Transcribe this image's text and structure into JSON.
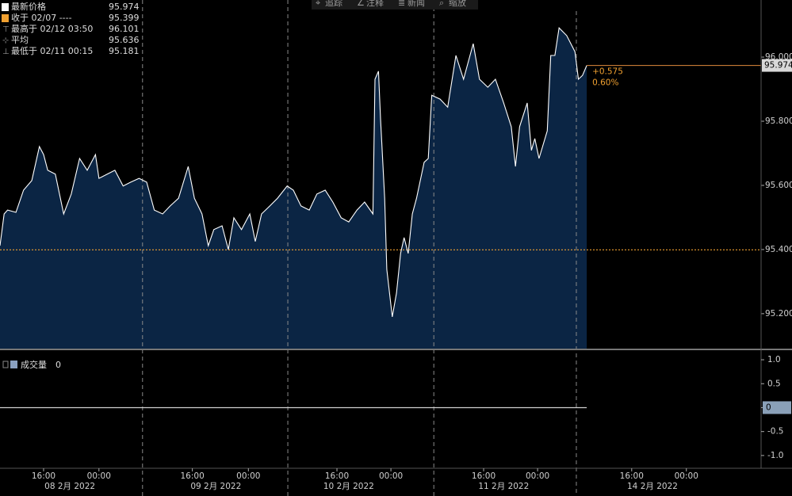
{
  "chart_data": {
    "type": "line",
    "toolbar": [
      "追踪",
      "注释",
      "新闻",
      "缩放"
    ],
    "legend": [
      {
        "label": "最新价格",
        "value": 95.974
      },
      {
        "label": "收于 02/07 ----",
        "value": 95.399
      },
      {
        "label": "最高于 02/12 03:50",
        "value": 96.101
      },
      {
        "label": "平均",
        "value": 95.636
      },
      {
        "label": "最低于 02/11 00:15",
        "value": 95.181
      }
    ],
    "last_price": 95.974,
    "close_price": 95.399,
    "change": "+0.575",
    "change_pct": "0.60%",
    "series": [
      {
        "color": "#ffffff",
        "fill": "#0b2544",
        "x": [
          0,
          0.6,
          1.1,
          2.3,
          3.4,
          4.6,
          5.7,
          6.3,
          6.9,
          8.0,
          9.2,
          10.3,
          11.5,
          12.6,
          13.8,
          14.3,
          15.5,
          16.6,
          17.8,
          18.9,
          20.1,
          21.2,
          22.3,
          23.5,
          24.6,
          25.8,
          27.2,
          28.1,
          29.2,
          30.1,
          30.9,
          32.1,
          33.0,
          33.8,
          34.9,
          36.1,
          36.9,
          37.8,
          39.0,
          40.1,
          41.5,
          42.4,
          43.5,
          44.7,
          45.8,
          47.0,
          48.1,
          49.3,
          50.4,
          51.6,
          52.7,
          53.9,
          54.2,
          54.7,
          55.0,
          55.6,
          55.9,
          56.7,
          57.3,
          57.9,
          58.4,
          59.0,
          59.6,
          60.2,
          61.3,
          61.9,
          62.4,
          63.6,
          64.7,
          65.9,
          67.0,
          68.4,
          69.3,
          70.5,
          71.6,
          72.8,
          73.9,
          74.5,
          75.1,
          76.2,
          76.8,
          77.3,
          77.9,
          79.1,
          79.6,
          80.2,
          80.8,
          81.9,
          83.1,
          83.6,
          84.2,
          84.8
        ],
        "values": [
          95.412,
          95.511,
          95.523,
          95.516,
          95.585,
          95.615,
          95.721,
          95.696,
          95.647,
          95.635,
          95.511,
          95.573,
          95.684,
          95.647,
          95.696,
          95.622,
          95.635,
          95.647,
          95.598,
          95.61,
          95.622,
          95.61,
          95.523,
          95.511,
          95.536,
          95.56,
          95.659,
          95.56,
          95.511,
          95.412,
          95.462,
          95.474,
          95.4,
          95.499,
          95.462,
          95.511,
          95.425,
          95.511,
          95.536,
          95.56,
          95.598,
          95.585,
          95.536,
          95.523,
          95.573,
          95.585,
          95.548,
          95.499,
          95.486,
          95.523,
          95.548,
          95.511,
          95.931,
          95.956,
          95.807,
          95.56,
          95.338,
          95.19,
          95.264,
          95.388,
          95.437,
          95.388,
          95.511,
          95.56,
          95.672,
          95.684,
          95.881,
          95.869,
          95.844,
          96.005,
          95.931,
          96.042,
          95.931,
          95.906,
          95.931,
          95.857,
          95.783,
          95.659,
          95.783,
          95.857,
          95.709,
          95.746,
          95.684,
          95.77,
          96.005,
          96.005,
          96.091,
          96.067,
          96.017,
          95.931,
          95.943,
          95.974
        ]
      }
    ],
    "xlim": [
      0,
      110
    ],
    "ylim": [
      95.091,
      96.178
    ],
    "yticks": [
      {
        "value": 95.2,
        "label": "95.200"
      },
      {
        "value": 95.4,
        "label": "95.400"
      },
      {
        "value": 95.6,
        "label": "95.600"
      },
      {
        "value": 95.8,
        "label": "95.800"
      },
      {
        "value": 96.0,
        "label": "96.000"
      }
    ],
    "xticks": [
      {
        "value": 6.3,
        "label": "16:00"
      },
      {
        "value": 14.3,
        "label": "00:00"
      },
      {
        "value": 27.8,
        "label": "16:00"
      },
      {
        "value": 35.9,
        "label": "00:00"
      },
      {
        "value": 48.7,
        "label": "16:00"
      },
      {
        "value": 56.5,
        "label": "00:00"
      },
      {
        "value": 69.9,
        "label": "16:00"
      },
      {
        "value": 77.7,
        "label": "00:00"
      },
      {
        "value": 91.3,
        "label": "16:00"
      },
      {
        "value": 99.2,
        "label": "00:00"
      }
    ],
    "dates": [
      {
        "value": 10.1,
        "label": "08 2月 2022"
      },
      {
        "value": 31.2,
        "label": "09 2月 2022"
      },
      {
        "value": 50.4,
        "label": "10 2月 2022"
      },
      {
        "value": 72.8,
        "label": "11 2月 2022"
      },
      {
        "value": 94.3,
        "label": "14 2月 2022"
      }
    ],
    "day_dividers": [
      20.6,
      41.6,
      62.7,
      83.3
    ],
    "volume": {
      "label": "成交量",
      "value": 0,
      "ylim": [
        -1.25,
        1.1
      ],
      "yticks": [
        {
          "value": 1,
          "label": "1.0"
        },
        0.5,
        0,
        -0.5,
        {
          "value": -1,
          "label": "-1.0"
        }
      ]
    }
  }
}
